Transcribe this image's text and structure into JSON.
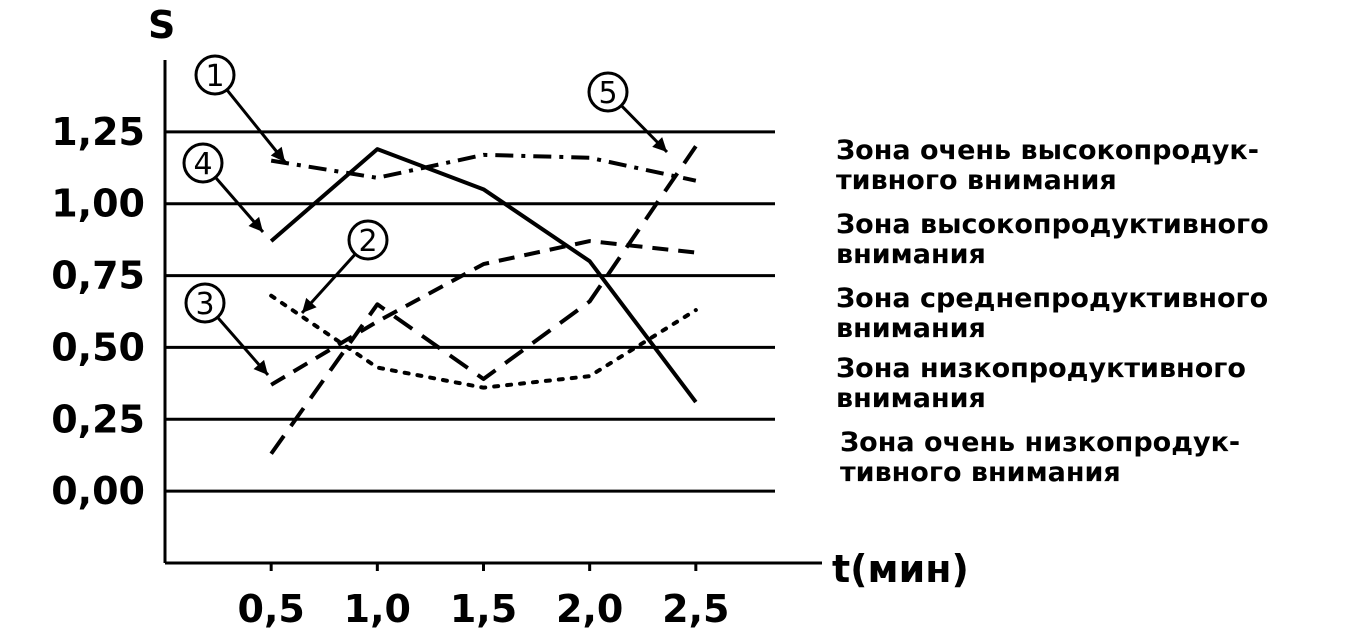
{
  "chart_data": {
    "type": "line",
    "ylabel": "S",
    "xlabel": "t(мин)",
    "xticks": [
      "0,5",
      "1,0",
      "1,5",
      "2,0",
      "2,5"
    ],
    "yticks": [
      "0,00",
      "0,25",
      "0,50",
      "0,75",
      "1,00",
      "1,25"
    ],
    "xlim": [
      0,
      3.0
    ],
    "ylim": [
      -0.25,
      1.5
    ],
    "grid": true,
    "series": [
      {
        "marker": "1",
        "style": "dashdot",
        "x": [
          0.5,
          1.0,
          1.5,
          2.0,
          2.5
        ],
        "y": [
          1.15,
          1.09,
          1.17,
          1.16,
          1.08
        ]
      },
      {
        "marker": "2",
        "style": "dotted",
        "x": [
          0.5,
          1.0,
          1.5,
          2.0,
          2.5
        ],
        "y": [
          0.68,
          0.43,
          0.36,
          0.4,
          0.63
        ]
      },
      {
        "marker": "3",
        "style": "dashed-short",
        "x": [
          0.5,
          1.0,
          1.5,
          2.0,
          2.5
        ],
        "y": [
          0.37,
          0.59,
          0.79,
          0.87,
          0.83
        ]
      },
      {
        "marker": "4",
        "style": "solid",
        "x": [
          0.5,
          1.0,
          1.5,
          2.0,
          2.5
        ],
        "y": [
          0.87,
          1.19,
          1.05,
          0.8,
          0.31
        ]
      },
      {
        "marker": "5",
        "style": "dashed-long",
        "x": [
          0.5,
          1.0,
          1.5,
          2.0,
          2.5
        ],
        "y": [
          0.13,
          0.65,
          0.39,
          0.66,
          1.2
        ]
      }
    ],
    "zones": [
      [
        "Зона очень высокопродук-",
        "тивного внимания"
      ],
      [
        "Зона высокопродуктивного",
        "внимания"
      ],
      [
        "Зона среднепродуктивного",
        "внимания"
      ],
      [
        "Зона низкопродуктивного",
        "внимания"
      ],
      [
        "Зона очень низкопродук-",
        "тивного внимания"
      ]
    ]
  }
}
